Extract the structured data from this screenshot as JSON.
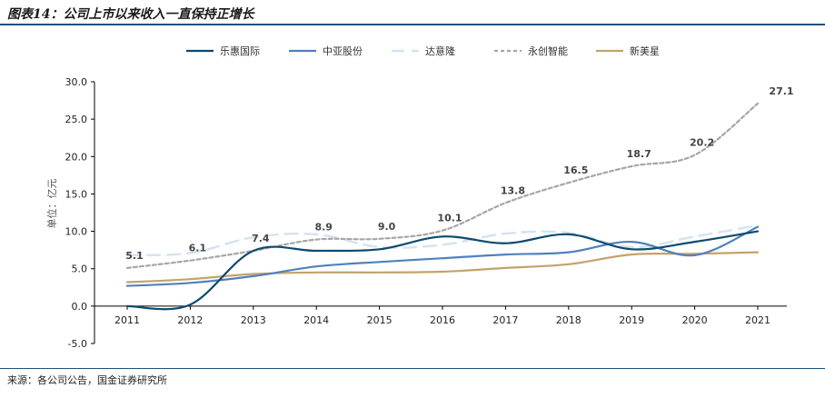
{
  "figure": {
    "title": "图表14：公司上市以来收入一直保持正增长",
    "source": "来源：各公司公告，国金证券研究所"
  },
  "chart_data": {
    "type": "line",
    "ylabel": "单位：亿元",
    "ylim": [
      -5,
      30
    ],
    "yticks": [
      -5,
      0,
      5,
      10,
      15,
      20,
      25,
      30
    ],
    "ytick_labels": [
      "-5.0",
      "0.0",
      "5.0",
      "10.0",
      "15.0",
      "20.0",
      "25.0",
      "30.0"
    ],
    "categories": [
      "2011",
      "2012",
      "2013",
      "2014",
      "2015",
      "2016",
      "2017",
      "2018",
      "2019",
      "2020",
      "2021"
    ],
    "legend_position": "top",
    "grid": false,
    "series": [
      {
        "name": "乐惠国际",
        "color": "#0b4a6f",
        "dash": "solid",
        "values": [
          0.0,
          0.2,
          7.4,
          7.4,
          7.6,
          9.3,
          8.4,
          9.6,
          7.6,
          8.6,
          10.0
        ]
      },
      {
        "name": "中亚股份",
        "color": "#4f81bd",
        "dash": "solid",
        "values": [
          2.7,
          3.1,
          4.0,
          5.3,
          5.9,
          6.4,
          6.9,
          7.2,
          8.6,
          6.8,
          10.6
        ]
      },
      {
        "name": "达意隆",
        "color": "#d6e3f0",
        "dash": "dashed",
        "values": [
          6.8,
          7.1,
          9.2,
          9.6,
          7.9,
          8.2,
          9.7,
          9.8,
          7.9,
          9.3,
          10.8
        ]
      },
      {
        "name": "永创智能",
        "color": "#a6a6a6",
        "dash": "dotted",
        "values": [
          5.1,
          6.1,
          7.4,
          8.9,
          9.0,
          10.1,
          13.8,
          16.5,
          18.7,
          20.2,
          27.1
        ]
      },
      {
        "name": "新美星",
        "color": "#c4a26b",
        "dash": "solid",
        "values": [
          3.2,
          3.6,
          4.3,
          4.5,
          4.5,
          4.6,
          5.1,
          5.6,
          6.9,
          7.0,
          7.2
        ]
      }
    ],
    "data_labels": {
      "series": "永创智能",
      "labels": [
        "5.1",
        "6.1",
        "7.4",
        "8.9",
        "9.0",
        "10.1",
        "13.8",
        "16.5",
        "18.7",
        "20.2",
        "27.1"
      ]
    }
  }
}
